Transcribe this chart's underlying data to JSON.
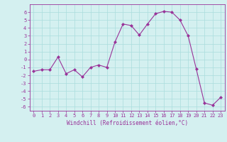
{
  "x": [
    0,
    1,
    2,
    3,
    4,
    5,
    6,
    7,
    8,
    9,
    10,
    11,
    12,
    13,
    14,
    15,
    16,
    17,
    18,
    19,
    20,
    21,
    22,
    23
  ],
  "y": [
    -1.5,
    -1.3,
    -1.3,
    0.3,
    -1.8,
    -1.3,
    -2.2,
    -1.0,
    -0.7,
    -1.0,
    2.2,
    4.5,
    4.3,
    3.1,
    4.5,
    5.8,
    6.1,
    6.0,
    5.0,
    3.0,
    -1.2,
    -5.5,
    -5.8,
    -4.8
  ],
  "line_color": "#993399",
  "marker_color": "#993399",
  "bg_color": "#d4f0f0",
  "grid_color": "#aadddd",
  "xlabel": "Windchill (Refroidissement éolien,°C)",
  "xlim": [
    -0.5,
    23.5
  ],
  "ylim": [
    -6.5,
    7.0
  ],
  "yticks": [
    -6,
    -5,
    -4,
    -3,
    -2,
    -1,
    0,
    1,
    2,
    3,
    4,
    5,
    6
  ],
  "xticks": [
    0,
    1,
    2,
    3,
    4,
    5,
    6,
    7,
    8,
    9,
    10,
    11,
    12,
    13,
    14,
    15,
    16,
    17,
    18,
    19,
    20,
    21,
    22,
    23
  ],
  "tick_color": "#993399",
  "label_color": "#993399",
  "font_family": "monospace",
  "tick_fontsize": 5.0,
  "xlabel_fontsize": 5.5
}
